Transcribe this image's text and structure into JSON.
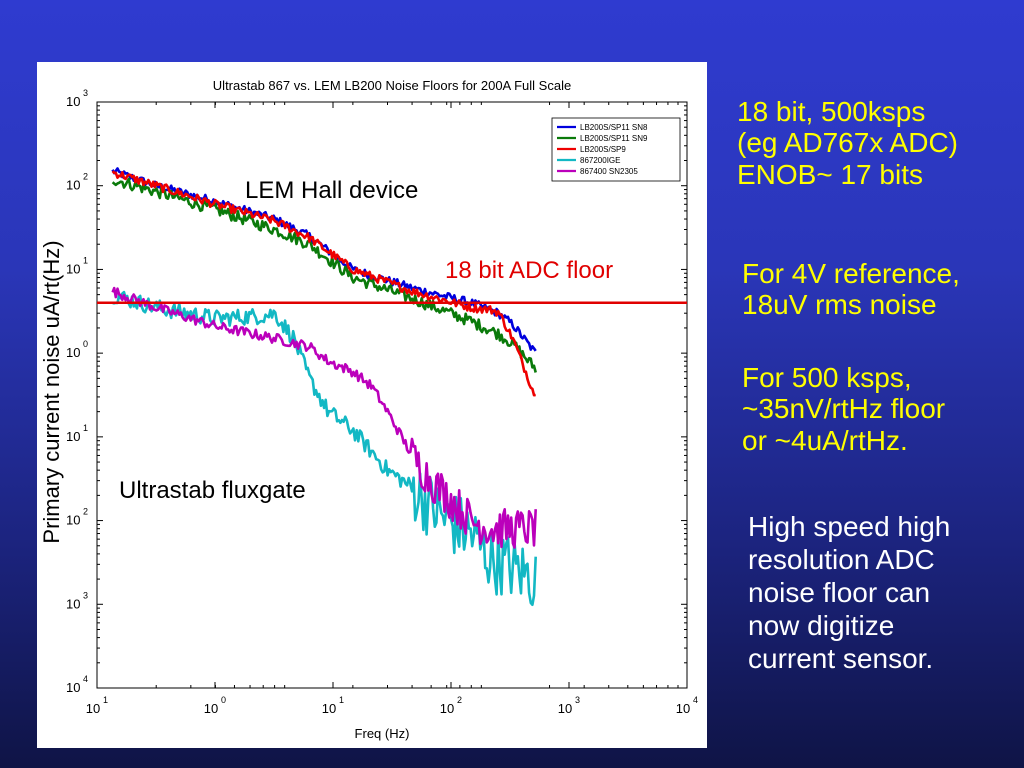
{
  "slide": {
    "bg_top": "#2f3bd0",
    "bg_bottom": "#0f1446",
    "text_color": "#ffff00",
    "note_color": "#ffffff",
    "notes": [
      {
        "lines": [
          "18 bit, 500ksps",
          "(eg AD767x ADC)",
          "ENOB~ 17 bits"
        ]
      },
      {
        "lines": [
          "For 4V reference,",
          "18uV rms noise"
        ]
      },
      {
        "lines": [
          "For 500 ksps,",
          "~35nV/rtHz floor",
          "or ~4uA/rtHz."
        ]
      },
      {
        "lines": [
          "High speed high",
          "resolution ADC",
          "noise floor can",
          "now digitize",
          "current sensor."
        ]
      }
    ]
  },
  "chart_data": {
    "type": "line",
    "title": "Ultrastab 867 vs. LEM LB200 Noise Floors for 200A Full Scale",
    "xlabel": "Freq (Hz)",
    "ylabel": "Primary current noise uA/rt(Hz)",
    "x_scale": "log",
    "y_scale": "log",
    "xlim": [
      10,
      10000
    ],
    "ylim": [
      0.0001,
      1000
    ],
    "x_ticks": [
      {
        "base": "10",
        "exp": "1"
      },
      {
        "base": "10",
        "exp": "0"
      },
      {
        "base": "10",
        "exp": "1"
      },
      {
        "base": "10",
        "exp": "2"
      },
      {
        "base": "10",
        "exp": "3"
      },
      {
        "base": "10",
        "exp": "4"
      }
    ],
    "y_ticks": [
      {
        "base": "10",
        "exp": "3"
      },
      {
        "base": "10",
        "exp": "2"
      },
      {
        "base": "10",
        "exp": "1"
      },
      {
        "base": "10",
        "exp": "0"
      },
      {
        "base": "10",
        "exp": "1"
      },
      {
        "base": "10",
        "exp": "2"
      },
      {
        "base": "10",
        "exp": "3"
      },
      {
        "base": "10",
        "exp": "4"
      }
    ],
    "legend_position": "top-right",
    "annotations": [
      {
        "text": "LEM Hall device",
        "color": "#000000"
      },
      {
        "text": "18 bit ADC floor",
        "color": "#e00000"
      },
      {
        "text": "Ultrastab fluxgate",
        "color": "#000000"
      }
    ],
    "adc_floor": {
      "y": 4,
      "color": "#e00000"
    },
    "series": [
      {
        "name": "LB200S/SP11 SN8",
        "color": "#0000dd",
        "noise": 0.05,
        "points": [
          [
            12,
            150
          ],
          [
            20,
            100
          ],
          [
            40,
            65
          ],
          [
            80,
            40
          ],
          [
            120,
            25
          ],
          [
            200,
            10
          ],
          [
            400,
            6
          ],
          [
            800,
            4
          ],
          [
            1100,
            3
          ],
          [
            1300,
            2.2
          ],
          [
            1700,
            1
          ]
        ]
      },
      {
        "name": "LB200S/SP11 SN9",
        "color": "#0a7a0a",
        "noise": 0.07,
        "points": [
          [
            12,
            120
          ],
          [
            20,
            85
          ],
          [
            40,
            52
          ],
          [
            80,
            30
          ],
          [
            120,
            20
          ],
          [
            200,
            8
          ],
          [
            400,
            4.5
          ],
          [
            800,
            2.4
          ],
          [
            1100,
            1.7
          ],
          [
            1300,
            1.3
          ],
          [
            1700,
            0.65
          ]
        ]
      },
      {
        "name": "LB200S/SP9",
        "color": "#ee0000",
        "noise": 0.05,
        "points": [
          [
            12,
            145
          ],
          [
            20,
            100
          ],
          [
            40,
            60
          ],
          [
            80,
            38
          ],
          [
            120,
            24
          ],
          [
            200,
            10
          ],
          [
            400,
            5.5
          ],
          [
            800,
            3.5
          ],
          [
            1000,
            3.3
          ],
          [
            1100,
            3.1
          ],
          [
            1300,
            1.5
          ],
          [
            1700,
            0.3
          ]
        ]
      },
      {
        "name": "867200IGE",
        "color": "#13b8c4",
        "noise": 0.1,
        "points": [
          [
            12,
            5
          ],
          [
            20,
            3.5
          ],
          [
            40,
            2.6
          ],
          [
            70,
            2.8
          ],
          [
            80,
            3
          ],
          [
            100,
            1.5
          ],
          [
            120,
            0.5
          ],
          [
            150,
            0.2
          ],
          [
            200,
            0.12
          ],
          [
            300,
            0.04
          ],
          [
            400,
            0.025
          ],
          [
            500,
            0.015
          ],
          [
            600,
            0.01
          ],
          [
            800,
            0.007
          ],
          [
            1000,
            0.0035
          ],
          [
            1200,
            0.003
          ],
          [
            1700,
            0.002
          ]
        ]
      },
      {
        "name": "867400 SN2305",
        "color": "#bb00bb",
        "noise": 0.06,
        "points": [
          [
            12,
            5.5
          ],
          [
            20,
            3.5
          ],
          [
            40,
            2.1
          ],
          [
            80,
            1.5
          ],
          [
            120,
            1.2
          ],
          [
            150,
            0.8
          ],
          [
            200,
            0.6
          ],
          [
            250,
            0.4
          ],
          [
            300,
            0.2
          ],
          [
            400,
            0.06
          ],
          [
            500,
            0.03
          ],
          [
            600,
            0.02
          ],
          [
            800,
            0.01
          ],
          [
            1000,
            0.008
          ],
          [
            1200,
            0.008
          ],
          [
            1700,
            0.008
          ]
        ]
      }
    ]
  }
}
